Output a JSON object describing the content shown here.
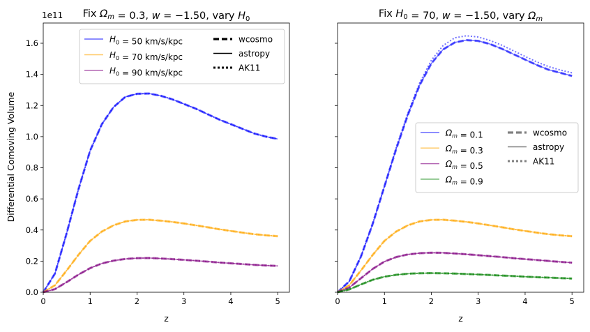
{
  "figure": {
    "ylabel": "Differential Comoving Volume",
    "offset_text": "1e11"
  },
  "chart_data": [
    {
      "type": "line",
      "title": "Fix Ωm = 0.3, w = −1.50, vary H0",
      "title_parts": [
        "Fix ",
        "Ω",
        "m",
        " = 0.3, ",
        "w",
        " = −1.50, vary ",
        "H",
        "0"
      ],
      "xlabel": "z",
      "ylabel": "Differential Comoving Volume",
      "xlim": [
        0,
        5.25
      ],
      "ylim": [
        0,
        1.73
      ],
      "y_scale_factor": "1e11",
      "xticks": [
        0,
        1,
        2,
        3,
        4,
        5
      ],
      "yticks": [
        0.0,
        0.2,
        0.4,
        0.6,
        0.8,
        1.0,
        1.2,
        1.4,
        1.6
      ],
      "x": [
        0,
        0.25,
        0.5,
        0.75,
        1.0,
        1.25,
        1.5,
        1.75,
        2.0,
        2.25,
        2.5,
        2.75,
        3.0,
        3.25,
        3.5,
        3.75,
        4.0,
        4.25,
        4.5,
        4.75,
        5.0
      ],
      "series": [
        {
          "name": "H0 = 50 km/s/kpc",
          "label_parts": [
            "H",
            "0",
            " = 50 km/s/kpc"
          ],
          "color": "#0000ff",
          "values": [
            0,
            0.12,
            0.38,
            0.66,
            0.91,
            1.08,
            1.19,
            1.255,
            1.275,
            1.277,
            1.263,
            1.24,
            1.21,
            1.18,
            1.145,
            1.11,
            1.08,
            1.05,
            1.02,
            1.0,
            0.985
          ]
        },
        {
          "name": "H0 = 70 km/s/kpc",
          "label_parts": [
            "H",
            "0",
            " = 70 km/s/kpc"
          ],
          "color": "#ffa500",
          "values": [
            0,
            0.045,
            0.14,
            0.24,
            0.33,
            0.39,
            0.43,
            0.455,
            0.465,
            0.466,
            0.46,
            0.452,
            0.442,
            0.43,
            0.418,
            0.405,
            0.394,
            0.383,
            0.373,
            0.366,
            0.36
          ]
        },
        {
          "name": "H0 = 90 km/s/kpc",
          "label_parts": [
            "H",
            "0",
            " = 90 km/s/kpc"
          ],
          "color": "#800080",
          "values": [
            0,
            0.02,
            0.065,
            0.113,
            0.155,
            0.185,
            0.203,
            0.214,
            0.219,
            0.22,
            0.217,
            0.213,
            0.208,
            0.203,
            0.197,
            0.191,
            0.186,
            0.181,
            0.176,
            0.172,
            0.169
          ]
        }
      ],
      "styles": [
        {
          "name": "wcosmo",
          "dash": "dashed"
        },
        {
          "name": "astropy",
          "dash": "solid"
        },
        {
          "name": "AK11",
          "dash": "dotted"
        }
      ],
      "legend": "top-right"
    },
    {
      "type": "line",
      "title": "Fix H0 = 70, w = −1.50, vary Ωm",
      "title_parts": [
        "Fix ",
        "H",
        "0",
        " = 70, ",
        "w",
        " = −1.50, vary ",
        "Ω",
        "m"
      ],
      "xlabel": "z",
      "xlim": [
        0,
        5.25
      ],
      "ylim": [
        0,
        1.73
      ],
      "xticks": [
        0,
        1,
        2,
        3,
        4,
        5
      ],
      "x": [
        0,
        0.25,
        0.5,
        0.75,
        1.0,
        1.25,
        1.5,
        1.75,
        2.0,
        2.25,
        2.5,
        2.75,
        3.0,
        3.25,
        3.5,
        3.75,
        4.0,
        4.25,
        4.5,
        4.75,
        5.0
      ],
      "series": [
        {
          "name": "Ωm = 0.1",
          "label_parts": [
            "Ω",
            "m",
            " = 0.1"
          ],
          "color": "#0000ff",
          "values": [
            0,
            0.07,
            0.23,
            0.44,
            0.68,
            0.92,
            1.14,
            1.33,
            1.47,
            1.56,
            1.605,
            1.62,
            1.615,
            1.595,
            1.565,
            1.53,
            1.495,
            1.46,
            1.43,
            1.41,
            1.39
          ],
          "ak11_values": [
            0,
            0.07,
            0.23,
            0.44,
            0.68,
            0.93,
            1.15,
            1.345,
            1.49,
            1.585,
            1.635,
            1.648,
            1.64,
            1.618,
            1.588,
            1.552,
            1.515,
            1.48,
            1.45,
            1.428,
            1.41
          ]
        },
        {
          "name": "Ωm = 0.3",
          "label_parts": [
            "Ω",
            "m",
            " = 0.3"
          ],
          "color": "#ffa500",
          "values": [
            0,
            0.045,
            0.14,
            0.24,
            0.33,
            0.39,
            0.43,
            0.455,
            0.465,
            0.466,
            0.46,
            0.452,
            0.442,
            0.43,
            0.418,
            0.405,
            0.394,
            0.383,
            0.373,
            0.366,
            0.36
          ]
        },
        {
          "name": "Ωm = 0.5",
          "label_parts": [
            "Ω",
            "m",
            " = 0.5"
          ],
          "color": "#800080",
          "values": [
            0,
            0.03,
            0.09,
            0.15,
            0.197,
            0.226,
            0.243,
            0.251,
            0.254,
            0.253,
            0.249,
            0.244,
            0.238,
            0.232,
            0.226,
            0.219,
            0.213,
            0.207,
            0.201,
            0.195,
            0.19
          ]
        },
        {
          "name": "Ωm = 0.9",
          "label_parts": [
            "Ω",
            "m",
            " = 0.9"
          ],
          "color": "#008000",
          "values": [
            0,
            0.018,
            0.05,
            0.08,
            0.1,
            0.112,
            0.119,
            0.122,
            0.123,
            0.122,
            0.12,
            0.117,
            0.114,
            0.111,
            0.107,
            0.104,
            0.1,
            0.097,
            0.094,
            0.091,
            0.088
          ]
        }
      ],
      "styles": [
        {
          "name": "wcosmo",
          "dash": "dashed"
        },
        {
          "name": "astropy",
          "dash": "solid"
        },
        {
          "name": "AK11",
          "dash": "dotted"
        }
      ],
      "legend": "center-right"
    }
  ]
}
